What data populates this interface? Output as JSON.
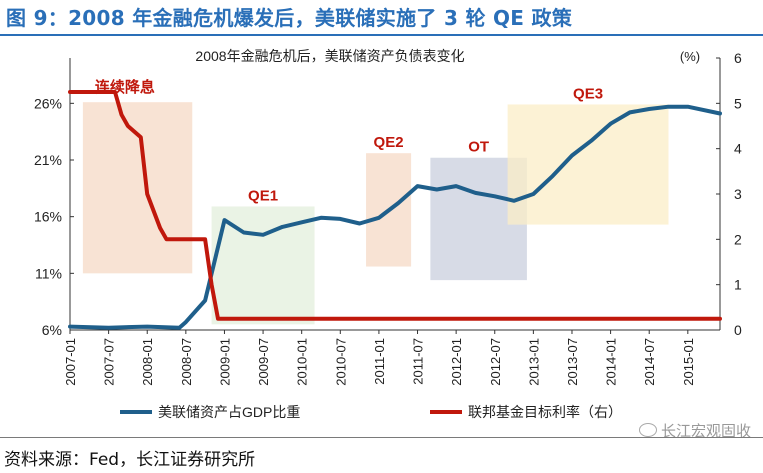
{
  "figure": {
    "title": "图 9：2008 年金融危机爆发后，美联储实施了 3 轮 QE 政策",
    "source": "资料来源：Fed，长江证券研究所",
    "watermark": "长江宏观固收"
  },
  "chart_data": {
    "type": "line",
    "title": "2008年金融危机后，美联储资产负债表变化",
    "right_axis_unit": "(%)",
    "left_axis": {
      "min": 6,
      "max": 30,
      "ticks": [
        6,
        11,
        16,
        21,
        26
      ],
      "tick_labels": [
        "6%",
        "11%",
        "16%",
        "21%",
        "26%"
      ]
    },
    "right_axis": {
      "min": 0,
      "max": 6,
      "ticks": [
        0,
        1,
        2,
        3,
        4,
        5,
        6
      ],
      "tick_labels": [
        "0",
        "1",
        "2",
        "3",
        "4",
        "5",
        "6"
      ]
    },
    "x_axis": {
      "min": "2007-01",
      "max": "2015-06",
      "tick_labels": [
        "2007-01",
        "2007-07",
        "2008-01",
        "2008-07",
        "2009-01",
        "2009-07",
        "2010-01",
        "2010-07",
        "2011-01",
        "2011-07",
        "2012-01",
        "2012-07",
        "2013-01",
        "2013-07",
        "2014-01",
        "2014-07",
        "2015-01"
      ]
    },
    "series": [
      {
        "name": "美联储资产占GDP比重",
        "axis": "left",
        "color": "#1f5f8b",
        "points": [
          [
            "2007-01",
            6.3
          ],
          [
            "2007-07",
            6.2
          ],
          [
            "2008-01",
            6.3
          ],
          [
            "2008-06",
            6.2
          ],
          [
            "2008-07",
            6.7
          ],
          [
            "2008-10",
            8.6
          ],
          [
            "2009-01",
            15.7
          ],
          [
            "2009-04",
            14.6
          ],
          [
            "2009-07",
            14.4
          ],
          [
            "2009-10",
            15.1
          ],
          [
            "2010-01",
            15.5
          ],
          [
            "2010-04",
            15.9
          ],
          [
            "2010-07",
            15.8
          ],
          [
            "2010-10",
            15.4
          ],
          [
            "2011-01",
            15.9
          ],
          [
            "2011-04",
            17.2
          ],
          [
            "2011-07",
            18.7
          ],
          [
            "2011-10",
            18.4
          ],
          [
            "2012-01",
            18.7
          ],
          [
            "2012-04",
            18.1
          ],
          [
            "2012-07",
            17.8
          ],
          [
            "2012-10",
            17.4
          ],
          [
            "2013-01",
            18.0
          ],
          [
            "2013-04",
            19.6
          ],
          [
            "2013-07",
            21.4
          ],
          [
            "2013-10",
            22.7
          ],
          [
            "2014-01",
            24.2
          ],
          [
            "2014-04",
            25.2
          ],
          [
            "2014-07",
            25.5
          ],
          [
            "2014-10",
            25.7
          ],
          [
            "2015-01",
            25.7
          ],
          [
            "2015-06",
            25.1
          ]
        ]
      },
      {
        "name": "联邦基金目标利率（右）",
        "axis": "right",
        "color": "#c0180c",
        "points": [
          [
            "2007-01",
            5.25
          ],
          [
            "2007-08",
            5.25
          ],
          [
            "2007-09",
            4.75
          ],
          [
            "2007-10",
            4.5
          ],
          [
            "2007-12",
            4.25
          ],
          [
            "2008-01",
            3.0
          ],
          [
            "2008-03",
            2.25
          ],
          [
            "2008-04",
            2.0
          ],
          [
            "2008-10",
            2.0
          ],
          [
            "2008-11",
            1.0
          ],
          [
            "2008-12",
            0.25
          ],
          [
            "2015-06",
            0.25
          ]
        ]
      }
    ],
    "annotations": [
      {
        "label": "连续降息",
        "start": "2007-03",
        "end": "2008-08",
        "low": 11.0,
        "high": 26.1,
        "fill": "#f5d9c6",
        "label_color": "#c0180c"
      },
      {
        "label": "QE1",
        "start": "2008-11",
        "end": "2010-03",
        "low": 6.5,
        "high": 16.9,
        "fill": "#e3efdc",
        "label_color": "#c0180c"
      },
      {
        "label": "QE2",
        "start": "2010-11",
        "end": "2011-06",
        "low": 11.6,
        "high": 21.6,
        "fill": "#f5d9c6",
        "label_color": "#c0180c"
      },
      {
        "label": "OT",
        "start": "2011-09",
        "end": "2012-12",
        "low": 10.4,
        "high": 21.2,
        "fill": "#c9cfde",
        "label_color": "#c0180c"
      },
      {
        "label": "QE3",
        "start": "2012-09",
        "end": "2014-10",
        "low": 15.3,
        "high": 25.9,
        "fill": "#fbeec7",
        "label_color": "#c0180c"
      }
    ],
    "legend": {
      "placement": "bottom"
    },
    "grid": false
  }
}
